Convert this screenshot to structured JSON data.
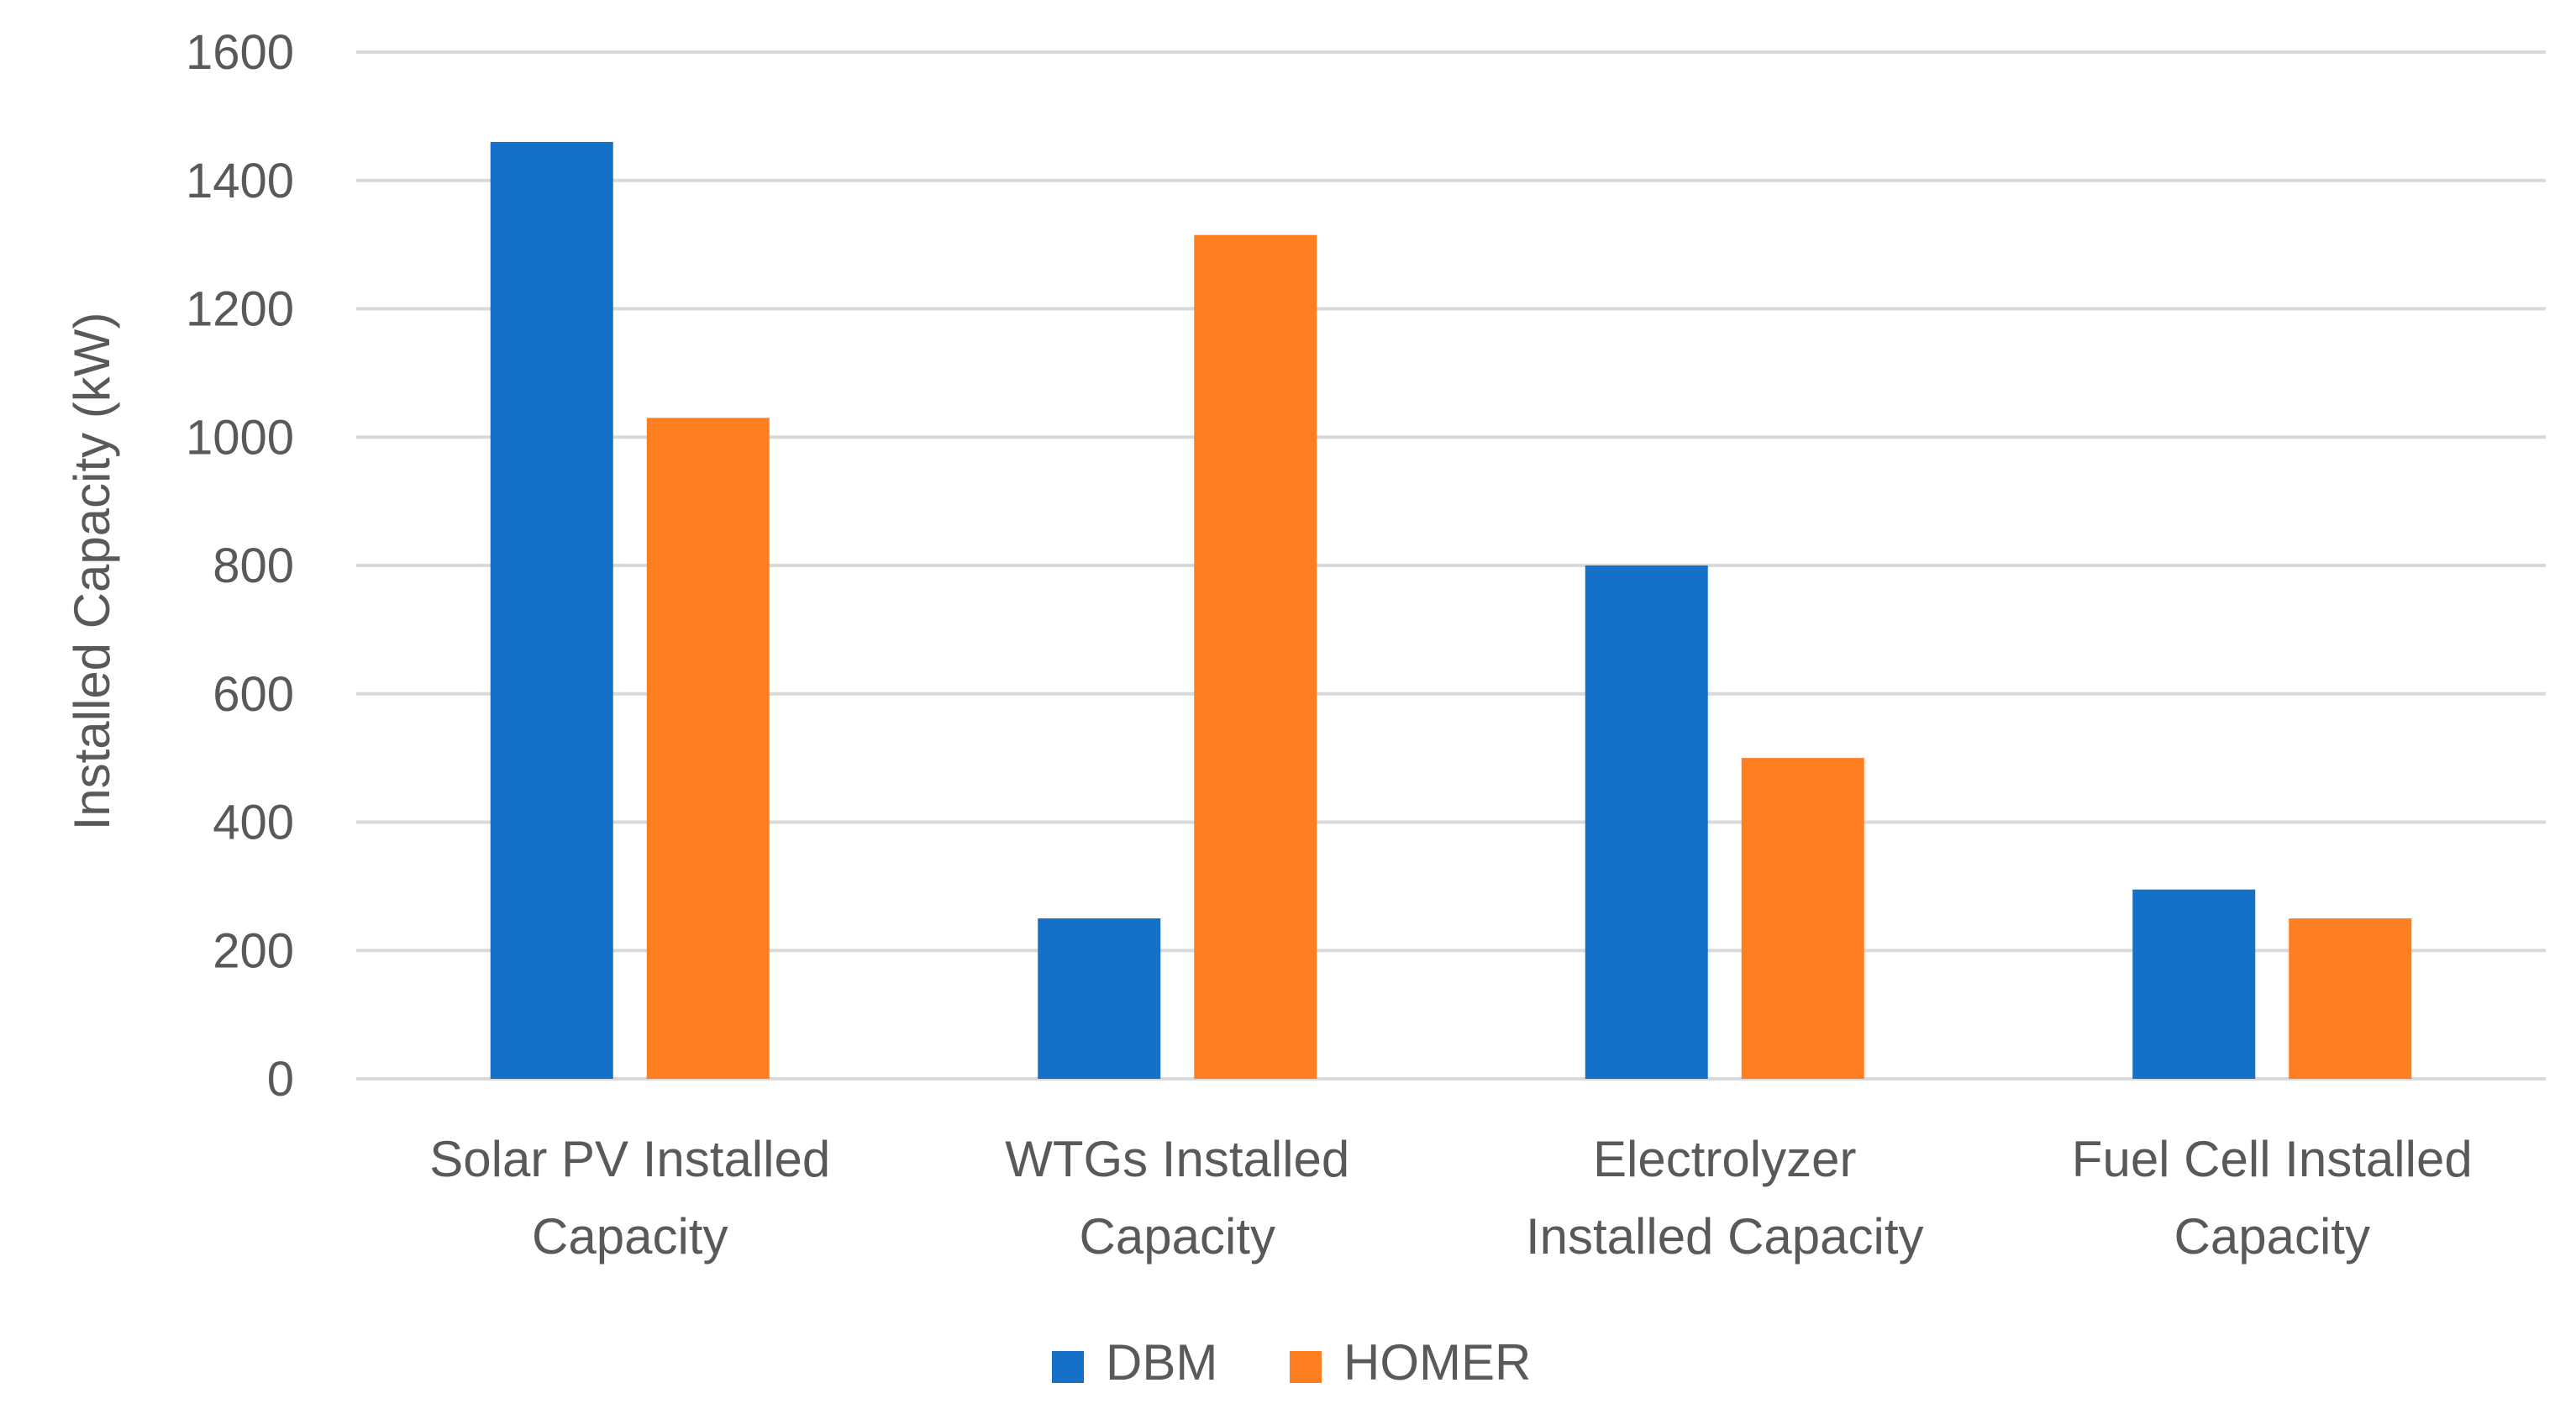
{
  "chart_data": {
    "type": "bar",
    "title": "",
    "xlabel": "",
    "ylabel": "Installed Capacity (kW)",
    "ylim": [
      0,
      1600
    ],
    "yticks": [
      0,
      200,
      400,
      600,
      800,
      1000,
      1200,
      1400,
      1600
    ],
    "grid": true,
    "legend_position": "bottom",
    "categories": [
      [
        "Solar PV Installed",
        "Capacity"
      ],
      [
        "WTGs Installed",
        "Capacity"
      ],
      [
        "Electrolyzer",
        "Installed Capacity"
      ],
      [
        "Fuel Cell Installed",
        "Capacity"
      ]
    ],
    "series": [
      {
        "name": "DBM",
        "color": "#1570C8",
        "values": [
          1460,
          250,
          800,
          295
        ]
      },
      {
        "name": "HOMER",
        "color": "#FD7F22",
        "values": [
          1030,
          1315,
          500,
          250
        ]
      }
    ]
  }
}
